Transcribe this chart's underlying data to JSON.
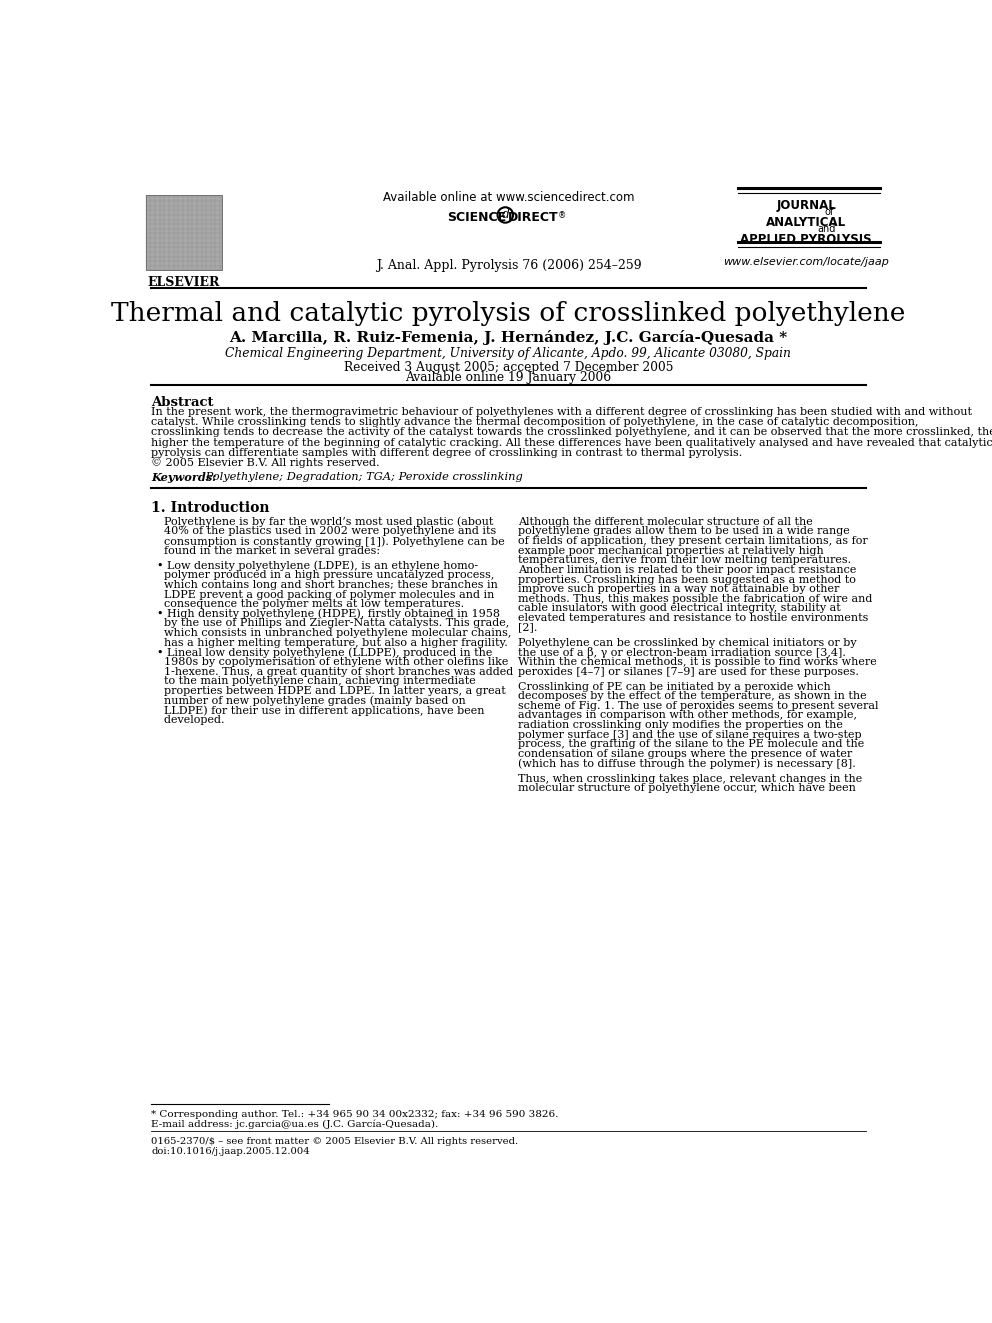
{
  "bg_color": "#ffffff",
  "header_available_online": "Available online at www.sciencedirect.com",
  "journal_citation": "J. Anal. Appl. Pyrolysis 76 (2006) 254–259",
  "journal_website": "www.elsevier.com/locate/jaap",
  "paper_title": "Thermal and catalytic pyrolysis of crosslinked polyethylene",
  "authors": "A. Marcilla, R. Ruiz-Femenia, J. Hernández, J.C. García-Quesada *",
  "affiliation": "Chemical Engineering Department, University of Alicante, Apdo. 99, Alicante 03080, Spain",
  "received": "Received 3 August 2005; accepted 7 December 2005",
  "available_online_date": "Available online 19 January 2006",
  "abstract_title": "Abstract",
  "keywords_label": "Keywords:",
  "keywords_text": " Polyethylene; Degradation; TGA; Peroxide crosslinking",
  "section1_title": "1. Introduction",
  "footnote_star": "* Corresponding author. Tel.: +34 965 90 34 00x2332; fax: +34 96 590 3826.",
  "footnote_email": "E-mail address: jc.garcia@ua.es (J.C. García-Quesada).",
  "footer_issn": "0165-2370/$ – see front matter © 2005 Elsevier B.V. All rights reserved.",
  "footer_doi": "doi:10.1016/j.jaap.2005.12.004",
  "abstract_lines": [
    "In the present work, the thermogravimetric behaviour of polyethylenes with a different degree of crosslinking has been studied with and without",
    "catalyst. While crosslinking tends to slightly advance the thermal decomposition of polyethylene, in the case of catalytic decomposition,",
    "crosslinking tends to decrease the activity of the catalyst towards the crosslinked polyethylene, and it can be observed that the more crosslinked, the",
    "higher the temperature of the beginning of catalytic cracking. All these differences have been qualitatively analysed and have revealed that catalytic",
    "pyrolysis can differentiate samples with different degree of crosslinking in contrast to thermal pyrolysis.",
    "© 2005 Elsevier B.V. All rights reserved."
  ],
  "left_p1_lines": [
    "Polyethylene is by far the world’s most used plastic (about",
    "40% of the plastics used in 2002 were polyethylene and its",
    "consumption is constantly growing [1]). Polyethylene can be",
    "found in the market in several grades:"
  ],
  "bullet1_lines": [
    "• Low density polyethylene (LDPE), is an ethylene homo-",
    "  polymer produced in a high pressure uncatalyzed process,",
    "  which contains long and short branches; these branches in",
    "  LDPE prevent a good packing of polymer molecules and in",
    "  consequence the polymer melts at low temperatures."
  ],
  "bullet2_lines": [
    "• High density polyethylene (HDPE), firstly obtained in 1958",
    "  by the use of Phillips and Ziegler-Natta catalysts. This grade,",
    "  which consists in unbranched polyethylene molecular chains,",
    "  has a higher melting temperature, but also a higher fragility."
  ],
  "bullet3_lines": [
    "• Lineal low density polyethylene (LLDPE), produced in the",
    "  1980s by copolymerisation of ethylene with other olefins like",
    "  1-hexene. Thus, a great quantity of short branches was added",
    "  to the main polyethylene chain, achieving intermediate",
    "  properties between HDPE and LDPE. In latter years, a great",
    "  number of new polyethylene grades (mainly based on",
    "  LLDPE) for their use in different applications, have been",
    "  developed."
  ],
  "right_p1_lines": [
    "Although the different molecular structure of all the",
    "polyethylene grades allow them to be used in a wide range",
    "of fields of application, they present certain limitations, as for",
    "example poor mechanical properties at relatively high",
    "temperatures, derive from their low melting temperatures.",
    "Another limitation is related to their poor impact resistance",
    "properties. Crosslinking has been suggested as a method to",
    "improve such properties in a way not attainable by other",
    "methods. Thus, this makes possible the fabrication of wire and",
    "cable insulators with good electrical integrity, stability at",
    "elevated temperatures and resistance to hostile environments",
    "[2]."
  ],
  "right_p2_lines": [
    "Polyethylene can be crosslinked by chemical initiators or by",
    "the use of a β, γ or electron-beam irradiation source [3,4].",
    "Within the chemical methods, it is possible to find works where",
    "peroxides [4–7] or silanes [7–9] are used for these purposes."
  ],
  "right_p3_lines": [
    "Crosslinking of PE can be initiated by a peroxide which",
    "decomposes by the effect of the temperature, as shown in the",
    "scheme of Fig. 1. The use of peroxides seems to present several",
    "advantages in comparison with other methods, for example,",
    "radiation crosslinking only modifies the properties on the",
    "polymer surface [3] and the use of silane requires a two-step",
    "process, the grafting of the silane to the PE molecule and the",
    "condensation of silane groups where the presence of water",
    "(which has to diffuse through the polymer) is necessary [8]."
  ],
  "right_p4_lines": [
    "Thus, when crosslinking takes place, relevant changes in the",
    "molecular structure of polyethylene occur, which have been"
  ]
}
